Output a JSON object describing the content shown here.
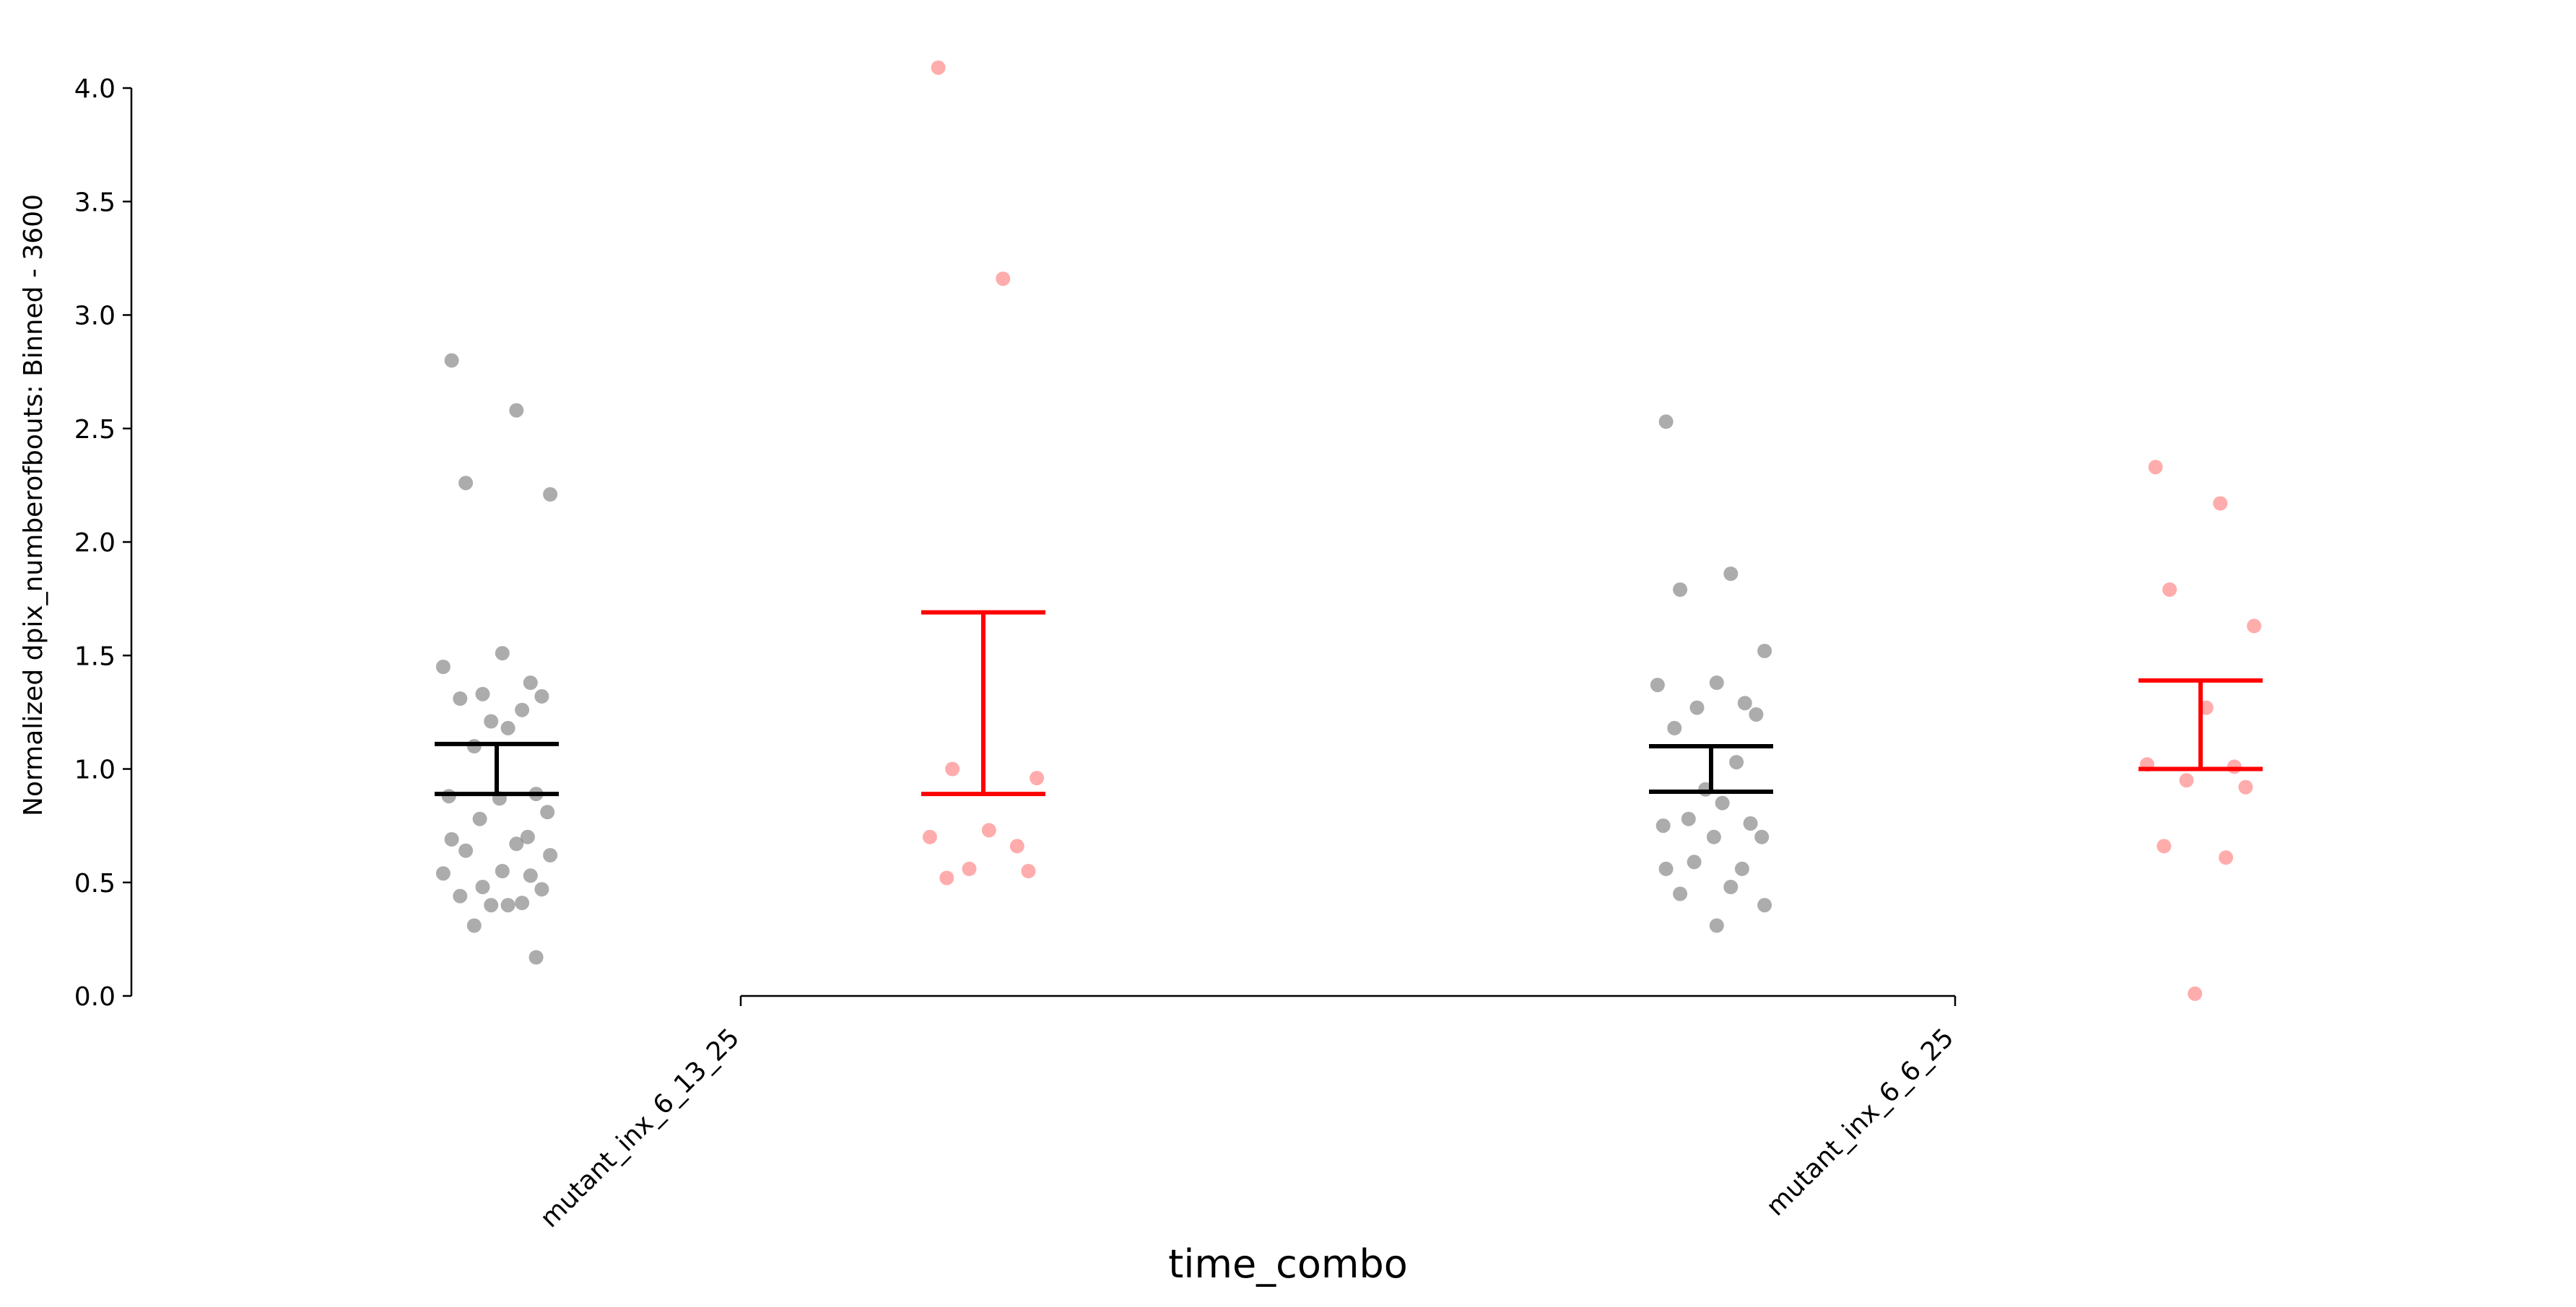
{
  "chart_data": {
    "type": "scatter",
    "subtype": "strip plot with mean ± SEM error bars",
    "xlabel": "time_combo",
    "ylabel": "Normalized dpix_numberofbouts: Binned - 3600",
    "categories": [
      "mutant_inx_6_13_25",
      "mutant_inx_6_6_25"
    ],
    "ylim": [
      0,
      4.0
    ],
    "yticks": [
      "0.0",
      "0.5",
      "1.0",
      "1.5",
      "2.0",
      "2.5",
      "3.0",
      "3.5",
      "4.0"
    ],
    "grid": false,
    "legend": "none",
    "series": [
      {
        "color": "#808080",
        "errorbar_color": "#000000",
        "groups": [
          {
            "category": "mutant_inx_6_13_25",
            "errorbar": [
              0.89,
              1.11
            ],
            "points": [
              2.8,
              2.58,
              2.26,
              2.21,
              1.51,
              1.45,
              1.38,
              1.33,
              1.32,
              1.31,
              1.26,
              1.21,
              1.18,
              1.1,
              0.89,
              0.88,
              0.87,
              0.81,
              0.78,
              0.7,
              0.69,
              0.67,
              0.64,
              0.62,
              0.55,
              0.54,
              0.53,
              0.48,
              0.47,
              0.44,
              0.41,
              0.4,
              0.4,
              0.31,
              0.17
            ]
          },
          {
            "category": "mutant_inx_6_6_25",
            "errorbar": [
              0.9,
              1.1
            ],
            "points": [
              2.53,
              1.86,
              1.79,
              1.52,
              1.38,
              1.37,
              1.29,
              1.27,
              1.24,
              1.18,
              1.03,
              0.91,
              0.85,
              0.78,
              0.76,
              0.75,
              0.7,
              0.7,
              0.59,
              0.56,
              0.56,
              0.48,
              0.45,
              0.4,
              0.31
            ]
          }
        ]
      },
      {
        "color": "#ff7f7f",
        "errorbar_color": "#ff0000",
        "groups": [
          {
            "category": "mutant_inx_6_13_25",
            "errorbar": [
              0.89,
              1.69
            ],
            "points": [
              4.09,
              3.16,
              1.0,
              0.96,
              0.73,
              0.7,
              0.66,
              0.56,
              0.55,
              0.52
            ]
          },
          {
            "category": "mutant_inx_6_6_25",
            "errorbar": [
              1.0,
              1.39
            ],
            "points": [
              2.33,
              2.17,
              1.79,
              1.63,
              1.27,
              1.02,
              1.01,
              0.95,
              0.92,
              0.66,
              0.61,
              0.01
            ]
          }
        ]
      }
    ]
  }
}
